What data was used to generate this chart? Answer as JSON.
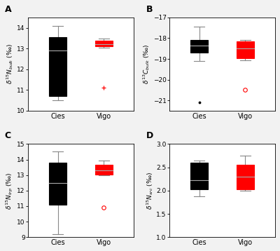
{
  "panels": [
    {
      "label": "A",
      "ylabel": "$\\delta^{15}N_{bulk}$ (‰)",
      "ylim": [
        10.0,
        14.5
      ],
      "yticks": [
        10,
        11,
        12,
        13,
        14
      ],
      "boxes": [
        {
          "color": "black",
          "label": "Cies",
          "whisker_low": 10.5,
          "q1": 10.7,
          "median": 12.9,
          "q3": 13.55,
          "whisker_high": 14.1,
          "outlier_type": "none",
          "outlier_val": null
        },
        {
          "color": "red",
          "label": "Vigo",
          "whisker_low": 13.05,
          "q1": 13.1,
          "median": 13.22,
          "q3": 13.38,
          "whisker_high": 13.47,
          "outlier_type": "filled_red",
          "outlier_val": 11.1
        }
      ]
    },
    {
      "label": "B",
      "ylabel": "$\\delta^{13}C_{bulk}$ (‰)",
      "ylim": [
        -21.5,
        -17.0
      ],
      "yticks": [
        -21,
        -20,
        -19,
        -18,
        -17
      ],
      "boxes": [
        {
          "color": "black",
          "label": "Cies",
          "whisker_low": -19.1,
          "q1": -18.7,
          "median": -18.35,
          "q3": -18.1,
          "whisker_high": -17.45,
          "outlier_type": "filled_black",
          "outlier_val": -21.1
        },
        {
          "color": "red",
          "label": "Vigo",
          "whisker_low": -19.05,
          "q1": -18.95,
          "median": -18.5,
          "q3": -18.15,
          "whisker_high": -18.1,
          "outlier_type": "open_red",
          "outlier_val": -20.5
        }
      ]
    },
    {
      "label": "C",
      "ylabel": "$\\delta^{15}N_{trp}$ (‰)",
      "ylim": [
        9.0,
        15.0
      ],
      "yticks": [
        9,
        10,
        11,
        12,
        13,
        14,
        15
      ],
      "boxes": [
        {
          "color": "black",
          "label": "Cies",
          "whisker_low": 9.2,
          "q1": 11.1,
          "median": 12.5,
          "q3": 13.8,
          "whisker_high": 14.5,
          "outlier_type": "none",
          "outlier_val": null
        },
        {
          "color": "red",
          "label": "Vigo",
          "whisker_low": 13.0,
          "q1": 13.05,
          "median": 13.3,
          "q3": 13.65,
          "whisker_high": 13.95,
          "outlier_type": "open_red",
          "outlier_val": 10.9
        }
      ]
    },
    {
      "label": "D",
      "ylabel": "$\\delta^{15}N_{src}$ (‰)",
      "ylim": [
        1.0,
        3.0
      ],
      "yticks": [
        1.0,
        1.5,
        2.0,
        2.5,
        3.0
      ],
      "boxes": [
        {
          "color": "black",
          "label": "Cies",
          "whisker_low": 1.88,
          "q1": 2.02,
          "median": 2.22,
          "q3": 2.6,
          "whisker_high": 2.65,
          "outlier_type": "none",
          "outlier_val": null
        },
        {
          "color": "red",
          "label": "Vigo",
          "whisker_low": 2.0,
          "q1": 2.02,
          "median": 2.3,
          "q3": 2.55,
          "whisker_high": 2.75,
          "outlier_type": "none",
          "outlier_val": null
        }
      ]
    }
  ],
  "xticklabels": [
    "Cies",
    "Vigo"
  ],
  "box_width": 0.38,
  "linewidth": 0.8,
  "median_linewidth": 0.8,
  "whisker_linewidth": 0.8,
  "bg_color": "#ffffff",
  "fig_bg_color": "#f2f2f2"
}
